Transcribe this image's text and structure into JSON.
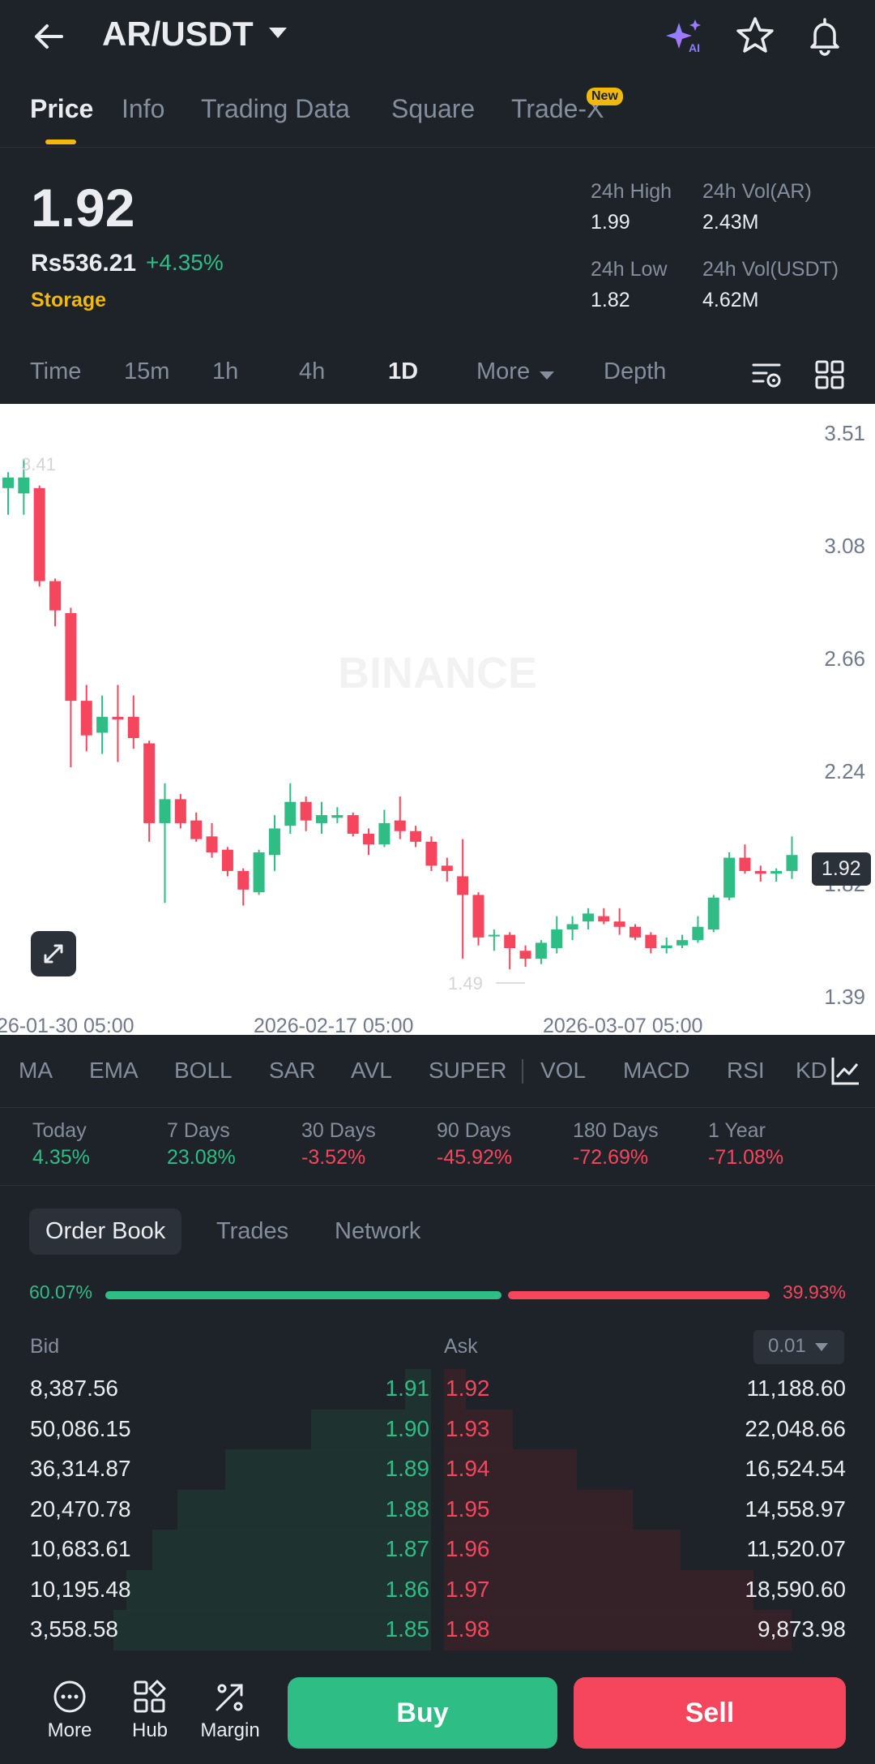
{
  "header": {
    "pair": "AR/USDT",
    "icons": [
      "back-arrow-icon",
      "ai-sparkle-icon",
      "star-icon",
      "bell-icon"
    ]
  },
  "tabs": {
    "items": [
      "Price",
      "Info",
      "Trading Data",
      "Square",
      "Trade-X"
    ],
    "active": "Price",
    "new_badge": "New"
  },
  "ticker": {
    "price": "1.92",
    "fiat": "Rs536.21",
    "change": "+4.35%",
    "tag": "Storage",
    "high_label": "24h High",
    "high": "1.99",
    "low_label": "24h Low",
    "low": "1.82",
    "vol_ar_label": "24h Vol(AR)",
    "vol_ar": "2.43M",
    "vol_usdt_label": "24h Vol(USDT)",
    "vol_usdt": "4.62M"
  },
  "timeframes": {
    "items": [
      "Time",
      "15m",
      "1h",
      "4h",
      "1D",
      "More",
      "Depth"
    ],
    "active": "1D"
  },
  "chart": {
    "y_ticks": [
      "3.51",
      "3.08",
      "2.66",
      "2.24",
      "1.82",
      "1.39"
    ],
    "x_ticks": [
      "26-01-30 05:00",
      "2026-02-17 05:00",
      "2026-03-07 05:00"
    ],
    "high_marker": "3.41",
    "low_marker": "1.49",
    "last_price": "1.92",
    "watermark": "BINANCE"
  },
  "chart_data": {
    "type": "candlestick",
    "y_range": [
      1.39,
      3.51
    ],
    "candles": [
      {
        "o": 3.3,
        "c": 3.34,
        "h": 3.36,
        "l": 3.2
      },
      {
        "o": 3.28,
        "c": 3.34,
        "h": 3.41,
        "l": 3.2
      },
      {
        "o": 3.3,
        "c": 2.95,
        "h": 3.31,
        "l": 2.93
      },
      {
        "o": 2.95,
        "c": 2.84,
        "h": 2.96,
        "l": 2.78
      },
      {
        "o": 2.83,
        "c": 2.5,
        "h": 2.85,
        "l": 2.25
      },
      {
        "o": 2.5,
        "c": 2.37,
        "h": 2.56,
        "l": 2.31
      },
      {
        "o": 2.38,
        "c": 2.44,
        "h": 2.52,
        "l": 2.3
      },
      {
        "o": 2.44,
        "c": 2.43,
        "h": 2.56,
        "l": 2.27
      },
      {
        "o": 2.44,
        "c": 2.36,
        "h": 2.52,
        "l": 2.32
      },
      {
        "o": 2.34,
        "c": 2.04,
        "h": 2.35,
        "l": 1.97
      },
      {
        "o": 2.04,
        "c": 2.13,
        "h": 2.19,
        "l": 1.74
      },
      {
        "o": 2.13,
        "c": 2.04,
        "h": 2.15,
        "l": 2.02
      },
      {
        "o": 2.05,
        "c": 1.98,
        "h": 2.08,
        "l": 1.97
      },
      {
        "o": 1.99,
        "c": 1.93,
        "h": 2.04,
        "l": 1.91
      },
      {
        "o": 1.94,
        "c": 1.86,
        "h": 1.95,
        "l": 1.84
      },
      {
        "o": 1.86,
        "c": 1.79,
        "h": 1.87,
        "l": 1.73
      },
      {
        "o": 1.78,
        "c": 1.93,
        "h": 1.94,
        "l": 1.77
      },
      {
        "o": 1.92,
        "c": 2.02,
        "h": 2.07,
        "l": 1.86
      },
      {
        "o": 2.03,
        "c": 2.12,
        "h": 2.19,
        "l": 2.0
      },
      {
        "o": 2.12,
        "c": 2.05,
        "h": 2.14,
        "l": 2.01
      },
      {
        "o": 2.04,
        "c": 2.07,
        "h": 2.12,
        "l": 2.0
      },
      {
        "o": 2.06,
        "c": 2.07,
        "h": 2.1,
        "l": 2.04
      },
      {
        "o": 2.07,
        "c": 2.0,
        "h": 2.08,
        "l": 1.99
      },
      {
        "o": 2.0,
        "c": 1.96,
        "h": 2.02,
        "l": 1.92
      },
      {
        "o": 1.96,
        "c": 2.04,
        "h": 2.09,
        "l": 1.95
      },
      {
        "o": 2.05,
        "c": 2.01,
        "h": 2.14,
        "l": 1.98
      },
      {
        "o": 2.01,
        "c": 1.97,
        "h": 2.03,
        "l": 1.95
      },
      {
        "o": 1.97,
        "c": 1.88,
        "h": 1.99,
        "l": 1.86
      },
      {
        "o": 1.88,
        "c": 1.86,
        "h": 1.91,
        "l": 1.82
      },
      {
        "o": 1.84,
        "c": 1.77,
        "h": 1.98,
        "l": 1.53
      },
      {
        "o": 1.77,
        "c": 1.61,
        "h": 1.78,
        "l": 1.58
      },
      {
        "o": 1.62,
        "c": 1.62,
        "h": 1.64,
        "l": 1.56
      },
      {
        "o": 1.62,
        "c": 1.57,
        "h": 1.63,
        "l": 1.49
      },
      {
        "o": 1.56,
        "c": 1.53,
        "h": 1.58,
        "l": 1.5
      },
      {
        "o": 1.53,
        "c": 1.59,
        "h": 1.6,
        "l": 1.51
      },
      {
        "o": 1.57,
        "c": 1.64,
        "h": 1.69,
        "l": 1.55
      },
      {
        "o": 1.64,
        "c": 1.66,
        "h": 1.69,
        "l": 1.6
      },
      {
        "o": 1.67,
        "c": 1.7,
        "h": 1.72,
        "l": 1.64
      },
      {
        "o": 1.69,
        "c": 1.67,
        "h": 1.72,
        "l": 1.66
      },
      {
        "o": 1.67,
        "c": 1.65,
        "h": 1.72,
        "l": 1.62
      },
      {
        "o": 1.65,
        "c": 1.61,
        "h": 1.66,
        "l": 1.6
      },
      {
        "o": 1.62,
        "c": 1.57,
        "h": 1.63,
        "l": 1.55
      },
      {
        "o": 1.57,
        "c": 1.58,
        "h": 1.61,
        "l": 1.55
      },
      {
        "o": 1.58,
        "c": 1.6,
        "h": 1.62,
        "l": 1.57
      },
      {
        "o": 1.6,
        "c": 1.65,
        "h": 1.69,
        "l": 1.59
      },
      {
        "o": 1.64,
        "c": 1.76,
        "h": 1.77,
        "l": 1.63
      },
      {
        "o": 1.76,
        "c": 1.91,
        "h": 1.93,
        "l": 1.75
      },
      {
        "o": 1.91,
        "c": 1.86,
        "h": 1.96,
        "l": 1.85
      },
      {
        "o": 1.86,
        "c": 1.85,
        "h": 1.88,
        "l": 1.82
      },
      {
        "o": 1.85,
        "c": 1.86,
        "h": 1.87,
        "l": 1.82
      },
      {
        "o": 1.86,
        "c": 1.92,
        "h": 1.99,
        "l": 1.83
      }
    ]
  },
  "indicators": [
    "MA",
    "EMA",
    "BOLL",
    "SAR",
    "AVL",
    "SUPER",
    "VOL",
    "MACD",
    "RSI",
    "KD"
  ],
  "performance": [
    {
      "label": "Today",
      "value": "4.35%",
      "dir": "up"
    },
    {
      "label": "7 Days",
      "value": "23.08%",
      "dir": "up"
    },
    {
      "label": "30 Days",
      "value": "-3.52%",
      "dir": "down"
    },
    {
      "label": "90 Days",
      "value": "-45.92%",
      "dir": "down"
    },
    {
      "label": "180 Days",
      "value": "-72.69%",
      "dir": "down"
    },
    {
      "label": "1 Year",
      "value": "-71.08%",
      "dir": "down"
    }
  ],
  "orderbook": {
    "tabs": [
      "Order Book",
      "Trades",
      "Network"
    ],
    "bid_pct": "60.07%",
    "ask_pct": "39.93%",
    "bid_ratio": 0.6007,
    "bid_label": "Bid",
    "ask_label": "Ask",
    "depth": "0.01",
    "rows": [
      {
        "bid_qty": "8,387.56",
        "bid_price": "1.91",
        "ask_price": "1.92",
        "ask_qty": "11,188.60",
        "bid_depth": 0.06,
        "ask_depth": 0.05
      },
      {
        "bid_qty": "50,086.15",
        "bid_price": "1.90",
        "ask_price": "1.93",
        "ask_qty": "22,048.66",
        "bid_depth": 0.28,
        "ask_depth": 0.16
      },
      {
        "bid_qty": "36,314.87",
        "bid_price": "1.89",
        "ask_price": "1.94",
        "ask_qty": "16,524.54",
        "bid_depth": 0.48,
        "ask_depth": 0.31
      },
      {
        "bid_qty": "20,470.78",
        "bid_price": "1.88",
        "ask_price": "1.95",
        "ask_qty": "14,558.97",
        "bid_depth": 0.59,
        "ask_depth": 0.44
      },
      {
        "bid_qty": "10,683.61",
        "bid_price": "1.87",
        "ask_price": "1.96",
        "ask_qty": "11,520.07",
        "bid_depth": 0.65,
        "ask_depth": 0.55
      },
      {
        "bid_qty": "10,195.48",
        "bid_price": "1.86",
        "ask_price": "1.97",
        "ask_qty": "18,590.60",
        "bid_depth": 0.71,
        "ask_depth": 0.72
      },
      {
        "bid_qty": "3,558.58",
        "bid_price": "1.85",
        "ask_price": "1.98",
        "ask_qty": "9,873.98",
        "bid_depth": 0.74,
        "ask_depth": 0.81
      }
    ]
  },
  "bottom_nav": {
    "more": "More",
    "hub": "Hub",
    "margin": "Margin",
    "buy": "Buy",
    "sell": "Sell"
  }
}
